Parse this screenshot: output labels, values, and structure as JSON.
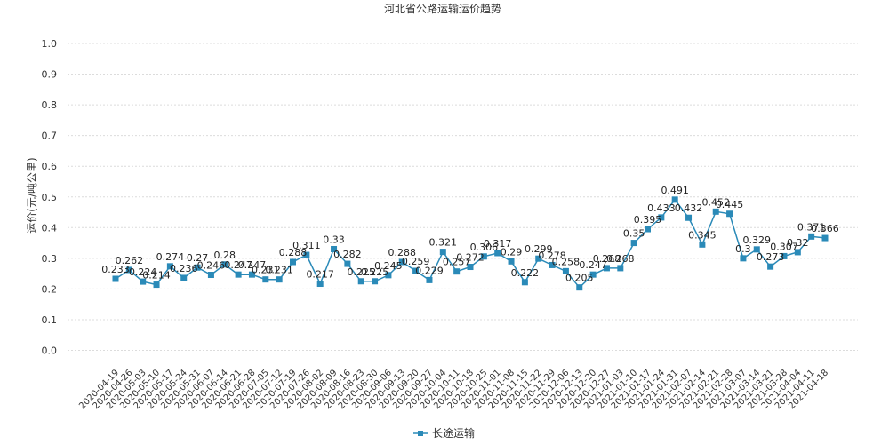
{
  "chart_data": {
    "type": "line",
    "title": "河北省公路运输运价趋势",
    "ylabel": "运价(元/吨公里)",
    "xlabel": "",
    "ylim": [
      0,
      1
    ],
    "yticks": [
      "0.0",
      "0.1",
      "0.2",
      "0.3",
      "0.4",
      "0.5",
      "0.6",
      "0.7",
      "0.8",
      "0.9",
      "1.0"
    ],
    "grid": true,
    "legend_position": "bottom",
    "color": "#2a8ab8",
    "categories": [
      "2020-04-19",
      "2020-04-26",
      "2020-05-03",
      "2020-05-10",
      "2020-05-17",
      "2020-05-24",
      "2020-05-31",
      "2020-06-07",
      "2020-06-14",
      "2020-06-21",
      "2020-06-28",
      "2020-07-05",
      "2020-07-12",
      "2020-07-19",
      "2020-07-26",
      "2020-08-02",
      "2020-08-09",
      "2020-08-16",
      "2020-08-23",
      "2020-08-30",
      "2020-09-06",
      "2020-09-13",
      "2020-09-20",
      "2020-09-27",
      "2020-10-04",
      "2020-10-11",
      "2020-10-18",
      "2020-10-25",
      "2020-11-01",
      "2020-11-08",
      "2020-11-15",
      "2020-11-22",
      "2020-11-29",
      "2020-12-06",
      "2020-12-13",
      "2020-12-20",
      "2020-12-27",
      "2021-01-03",
      "2021-01-10",
      "2021-01-17",
      "2021-01-24",
      "2021-01-31",
      "2021-02-07",
      "2021-02-14",
      "2021-02-21",
      "2021-02-28",
      "2021-03-07",
      "2021-03-14",
      "2021-03-21",
      "2021-03-28",
      "2021-04-04",
      "2021-04-11",
      "2021-04-18"
    ],
    "series": [
      {
        "name": "长途运输",
        "values": [
          0.233,
          0.262,
          0.224,
          0.214,
          0.274,
          0.236,
          0.27,
          0.246,
          0.28,
          0.247,
          0.247,
          0.231,
          0.231,
          0.288,
          0.311,
          0.217,
          0.33,
          0.282,
          0.225,
          0.225,
          0.245,
          0.288,
          0.259,
          0.229,
          0.321,
          0.257,
          0.272,
          0.306,
          0.317,
          0.29,
          0.222,
          0.299,
          0.278,
          0.258,
          0.205,
          0.247,
          0.268,
          0.268,
          0.35,
          0.395,
          0.433,
          0.491,
          0.432,
          0.345,
          0.452,
          0.445,
          0.3,
          0.329,
          0.273,
          0.307,
          0.32,
          0.371,
          0.366
        ]
      }
    ]
  }
}
